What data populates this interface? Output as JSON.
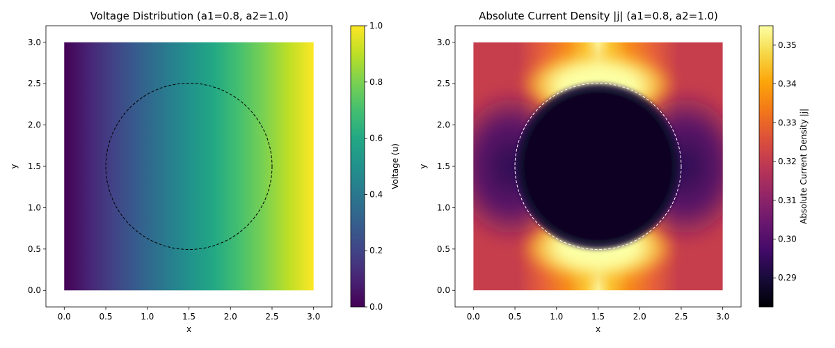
{
  "chart_data": [
    {
      "type": "heatmap",
      "title": "Voltage Distribution (a1=0.8, a2=1.0)",
      "xlabel": "x",
      "ylabel": "y",
      "xlim": [
        -0.22,
        3.22
      ],
      "ylim": [
        -0.2,
        3.2
      ],
      "xticks": [
        "0.0",
        "0.5",
        "1.0",
        "1.5",
        "2.0",
        "2.5",
        "3.0"
      ],
      "yticks": [
        "0.0",
        "0.5",
        "1.0",
        "1.5",
        "2.0",
        "2.5",
        "3.0"
      ],
      "domain": {
        "x": [
          0,
          3
        ],
        "y": [
          0,
          3
        ]
      },
      "field": "u = x / 3 (linear in x, uniform in y)",
      "colormap": "viridis",
      "circle": {
        "cx": 1.5,
        "cy": 1.5,
        "r": 1.0,
        "color": "#000000",
        "style": "dashed"
      },
      "colorbar": {
        "label": "Voltage (u)",
        "range": [
          0,
          1.0
        ],
        "ticks": [
          "0.0",
          "0.2",
          "0.4",
          "0.6",
          "0.8",
          "1.0"
        ]
      }
    },
    {
      "type": "heatmap",
      "title": "Absolute Current Density |j| (a1=0.8, a2=1.0)",
      "xlabel": "x",
      "ylabel": "y",
      "xlim": [
        -0.22,
        3.22
      ],
      "ylim": [
        -0.2,
        3.2
      ],
      "xticks": [
        "0.0",
        "0.5",
        "1.0",
        "1.5",
        "2.0",
        "2.5",
        "3.0"
      ],
      "yticks": [
        "0.0",
        "0.5",
        "1.0",
        "1.5",
        "2.0",
        "2.5",
        "3.0"
      ],
      "domain": {
        "x": [
          0,
          3
        ],
        "y": [
          0,
          3
        ]
      },
      "colormap": "inferno",
      "circle": {
        "cx": 1.5,
        "cy": 1.5,
        "r": 1.0,
        "color": "#ffffff",
        "style": "dashed"
      },
      "values": {
        "inside_circle": 0.2825,
        "far_field": 0.32,
        "top_bottom_max": 0.355,
        "left_right_min": 0.295
      },
      "colorbar": {
        "label": "Absolute Current Density |j|",
        "range": [
          0.2825,
          0.355
        ],
        "ticks": [
          "0.29",
          "0.30",
          "0.31",
          "0.32",
          "0.33",
          "0.34",
          "0.35"
        ],
        "tick_values": [
          0.29,
          0.3,
          0.31,
          0.32,
          0.33,
          0.34,
          0.35
        ]
      }
    }
  ]
}
